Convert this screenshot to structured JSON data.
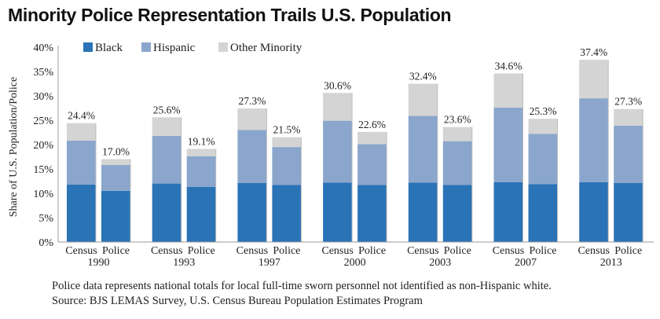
{
  "title": "Minority Police Representation Trails U.S. Population",
  "note": "Police data represents national totals for local full-time sworn personnel not identified as non-Hispanic white.",
  "source": "Source: BJS LEMAS Survey, U.S. Census Bureau Population Estimates Program",
  "chart_data": {
    "type": "bar",
    "stacked": true,
    "title": "Minority Police Representation Trails U.S. Population",
    "ylabel": "Share of U.S. Population/Police",
    "xlabel": "",
    "ylim": [
      0,
      40
    ],
    "yticks": [
      "0%",
      "5%",
      "10%",
      "15%",
      "20%",
      "25%",
      "30%",
      "35%",
      "40%"
    ],
    "grid": false,
    "legend": "top-left",
    "groups": [
      "1990",
      "1993",
      "1997",
      "2000",
      "2003",
      "2007",
      "2013"
    ],
    "bar_labels": [
      "Census",
      "Police"
    ],
    "series": [
      {
        "name": "Black",
        "color": "#2a73b6",
        "values": [
          11.8,
          10.5,
          12.0,
          11.3,
          12.1,
          11.7,
          12.2,
          11.7,
          12.2,
          11.7,
          12.3,
          11.9,
          12.3,
          12.1
        ]
      },
      {
        "name": "Hispanic",
        "color": "#8aa6cc",
        "values": [
          9.0,
          5.3,
          9.8,
          6.3,
          10.9,
          7.8,
          12.7,
          8.4,
          13.7,
          9.0,
          15.3,
          10.3,
          17.2,
          11.8
        ]
      },
      {
        "name": "Other Minority",
        "color": "#d4d4d4",
        "values": [
          3.6,
          1.2,
          3.8,
          1.5,
          4.4,
          2.0,
          5.7,
          2.5,
          6.6,
          2.9,
          7.0,
          3.1,
          7.9,
          3.4
        ]
      }
    ],
    "totals": [
      "24.4%",
      "17.0%",
      "25.6%",
      "19.1%",
      "27.3%",
      "21.5%",
      "30.6%",
      "22.6%",
      "32.4%",
      "23.6%",
      "34.6%",
      "25.3%",
      "37.4%",
      "27.3%"
    ]
  }
}
